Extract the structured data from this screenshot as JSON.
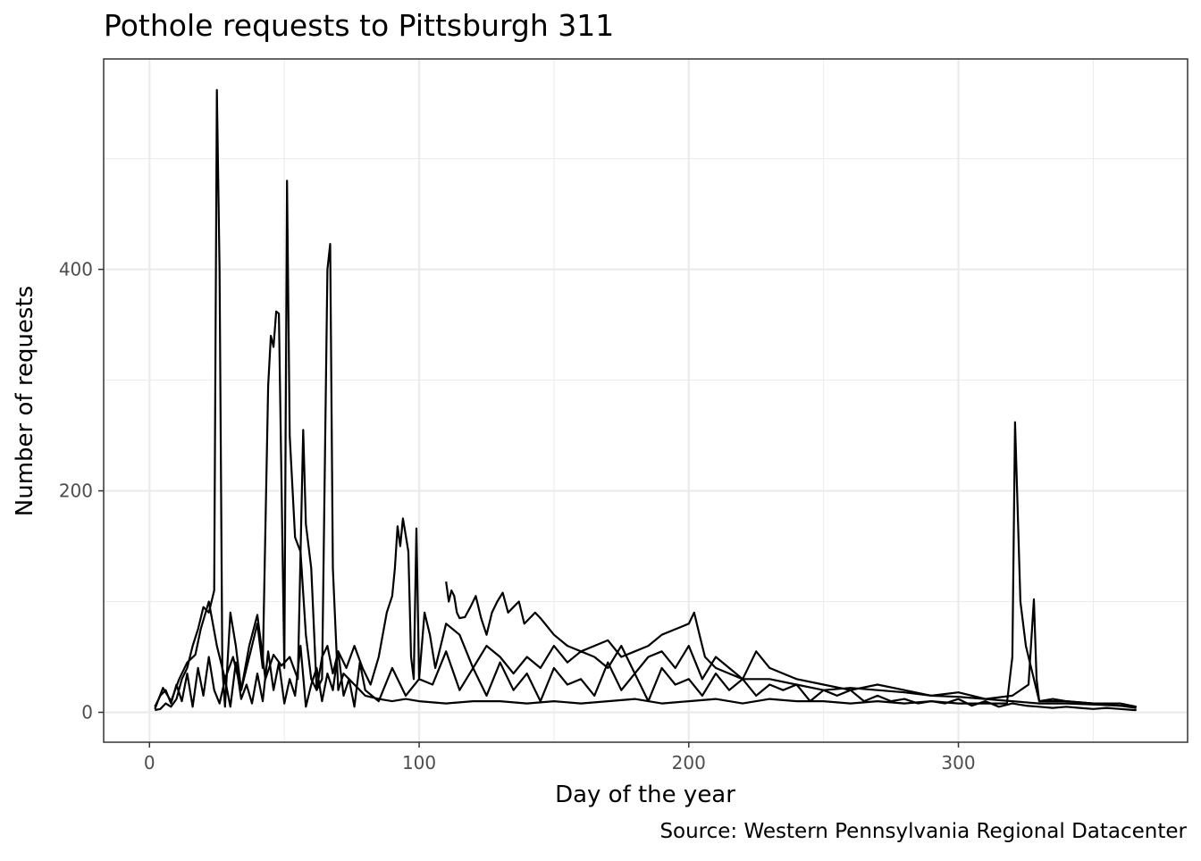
{
  "chart_data": {
    "type": "line",
    "title": "Pothole requests to Pittsburgh 311",
    "xlabel": "Day of the year",
    "ylabel": "Number of requests",
    "caption": "Source: Western Pennsylvania Regional Datacenter",
    "xlim": [
      -17,
      385
    ],
    "ylim": [
      -27,
      590
    ],
    "x_ticks": [
      0,
      100,
      200,
      300
    ],
    "y_ticks": [
      0,
      200,
      400
    ],
    "grid": true,
    "legend": "none",
    "line_color": "#000000",
    "series": [
      {
        "x": [
          2,
          4,
          6,
          8,
          10,
          12,
          14,
          16,
          18,
          20,
          22,
          24,
          25,
          26,
          27,
          28,
          30,
          32,
          34,
          36,
          38,
          40,
          42,
          44,
          45,
          46,
          47,
          48,
          50,
          51,
          52,
          54,
          56,
          58,
          60,
          62,
          64,
          66,
          67,
          68,
          70,
          72,
          74,
          76,
          78,
          80,
          85,
          90,
          95,
          100,
          110,
          120,
          130,
          140,
          150,
          160,
          170,
          180,
          190,
          200,
          210,
          220,
          230,
          240,
          250,
          260,
          270,
          280,
          290,
          300,
          310,
          318,
          320,
          321,
          323,
          325,
          330,
          340,
          350,
          360,
          366
        ],
        "y": [
          2,
          3,
          8,
          5,
          12,
          30,
          40,
          60,
          75,
          95,
          90,
          110,
          562,
          400,
          40,
          5,
          90,
          60,
          20,
          40,
          60,
          80,
          40,
          295,
          340,
          330,
          362,
          360,
          40,
          480,
          250,
          158,
          145,
          70,
          30,
          20,
          30,
          400,
          423,
          130,
          20,
          35,
          30,
          25,
          20,
          15,
          12,
          10,
          12,
          10,
          8,
          10,
          10,
          8,
          10,
          8,
          10,
          12,
          8,
          10,
          12,
          8,
          12,
          10,
          10,
          8,
          10,
          8,
          10,
          8,
          8,
          8,
          50,
          262,
          100,
          60,
          10,
          10,
          8,
          8,
          5
        ]
      },
      {
        "x": [
          2,
          5,
          8,
          11,
          14,
          17,
          19,
          22,
          25,
          28,
          31,
          34,
          37,
          40,
          43,
          46,
          49,
          52,
          55,
          57,
          58,
          60,
          62,
          64,
          66,
          68,
          70,
          73,
          76,
          79,
          82,
          85,
          88,
          90,
          91,
          92,
          93,
          94,
          95,
          96,
          97,
          98,
          99,
          100,
          102,
          104,
          106,
          108,
          110,
          115,
          120,
          125,
          130,
          135,
          140,
          145,
          150,
          155,
          160,
          165,
          170,
          175,
          180,
          185,
          190,
          195,
          200,
          205,
          210,
          215,
          220,
          225,
          230,
          235,
          240,
          250,
          260,
          270,
          280,
          290,
          300,
          310,
          320,
          326,
          328,
          329,
          330,
          335,
          340,
          350,
          360,
          366
        ],
        "y": [
          3,
          22,
          10,
          30,
          45,
          52,
          75,
          100,
          60,
          30,
          50,
          20,
          60,
          88,
          30,
          52,
          42,
          50,
          30,
          255,
          170,
          130,
          20,
          50,
          60,
          35,
          55,
          40,
          60,
          40,
          25,
          50,
          90,
          105,
          130,
          168,
          150,
          175,
          160,
          145,
          50,
          30,
          166,
          30,
          90,
          70,
          40,
          60,
          80,
          70,
          40,
          60,
          50,
          35,
          50,
          40,
          60,
          45,
          55,
          50,
          40,
          60,
          35,
          50,
          55,
          40,
          60,
          30,
          50,
          40,
          30,
          55,
          40,
          35,
          30,
          25,
          20,
          25,
          20,
          15,
          18,
          12,
          15,
          25,
          102,
          30,
          10,
          12,
          10,
          8,
          6,
          4
        ]
      },
      {
        "x": [
          110,
          111,
          112,
          113,
          114,
          115,
          117,
          119,
          121,
          123,
          125,
          127,
          129,
          131,
          133,
          135,
          137,
          139,
          141,
          143,
          145,
          150,
          155,
          160,
          165,
          170,
          175,
          180,
          185,
          190,
          195,
          200,
          202,
          204,
          206,
          210,
          215,
          220,
          230,
          240,
          250,
          260,
          270,
          280,
          290,
          300,
          310,
          320,
          330,
          340,
          350,
          360,
          366
        ],
        "y": [
          118,
          100,
          110,
          105,
          90,
          85,
          86,
          95,
          105,
          85,
          70,
          90,
          100,
          108,
          90,
          95,
          100,
          80,
          85,
          90,
          85,
          70,
          60,
          55,
          60,
          65,
          50,
          55,
          60,
          70,
          75,
          80,
          90,
          70,
          50,
          40,
          35,
          30,
          30,
          25,
          20,
          22,
          20,
          18,
          15,
          14,
          12,
          10,
          8,
          8,
          7,
          6,
          5
        ]
      },
      {
        "x": [
          2,
          4,
          6,
          8,
          10,
          12,
          14,
          16,
          18,
          20,
          22,
          24,
          26,
          28,
          30,
          32,
          34,
          36,
          38,
          40,
          42,
          44,
          46,
          48,
          50,
          52,
          54,
          56,
          58,
          60,
          62,
          64,
          66,
          68,
          70,
          72,
          74,
          76,
          78,
          80,
          85,
          90,
          95,
          100,
          105,
          110,
          115,
          120,
          125,
          130,
          135,
          140,
          145,
          150,
          155,
          160,
          165,
          170,
          175,
          180,
          185,
          190,
          195,
          200,
          205,
          210,
          215,
          220,
          225,
          230,
          235,
          240,
          245,
          250,
          255,
          260,
          265,
          270,
          275,
          280,
          285,
          290,
          295,
          300,
          305,
          310,
          315,
          320,
          325,
          330,
          335,
          340,
          345,
          350,
          355,
          360,
          365,
          366
        ],
        "y": [
          5,
          15,
          20,
          8,
          25,
          10,
          35,
          5,
          40,
          15,
          50,
          20,
          8,
          30,
          5,
          45,
          12,
          25,
          8,
          35,
          10,
          55,
          20,
          45,
          8,
          30,
          15,
          60,
          5,
          25,
          40,
          10,
          35,
          20,
          55,
          15,
          30,
          5,
          45,
          20,
          10,
          40,
          15,
          30,
          25,
          55,
          20,
          40,
          15,
          45,
          20,
          35,
          10,
          40,
          25,
          30,
          15,
          45,
          20,
          35,
          10,
          40,
          25,
          30,
          15,
          35,
          20,
          30,
          15,
          25,
          20,
          25,
          10,
          20,
          15,
          20,
          10,
          15,
          10,
          12,
          8,
          10,
          8,
          12,
          6,
          10,
          5,
          8,
          6,
          5,
          4,
          5,
          4,
          3,
          4,
          3,
          2,
          2
        ]
      }
    ]
  }
}
